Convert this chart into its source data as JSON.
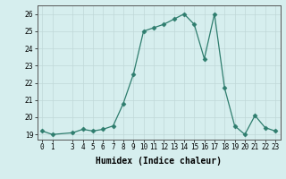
{
  "x": [
    0,
    1,
    3,
    4,
    5,
    6,
    7,
    8,
    9,
    10,
    11,
    12,
    13,
    14,
    15,
    16,
    17,
    18,
    19,
    20,
    21,
    22,
    23
  ],
  "y": [
    19.2,
    19.0,
    19.1,
    19.3,
    19.2,
    19.3,
    19.5,
    20.8,
    22.5,
    25.0,
    25.2,
    25.4,
    25.7,
    26.0,
    25.4,
    23.4,
    26.0,
    21.7,
    19.5,
    19.0,
    20.1,
    19.4,
    19.2
  ],
  "line_color": "#2e7d6e",
  "marker": "D",
  "marker_size": 2.5,
  "bg_color": "#d6eeee",
  "grid_color": "#c0d8d8",
  "xlabel": "Humidex (Indice chaleur)",
  "ylim": [
    18.7,
    26.5
  ],
  "xlim": [
    -0.5,
    23.5
  ],
  "yticks": [
    19,
    20,
    21,
    22,
    23,
    24,
    25,
    26
  ],
  "xticks": [
    0,
    1,
    3,
    4,
    5,
    6,
    7,
    8,
    9,
    10,
    11,
    12,
    13,
    14,
    15,
    16,
    17,
    18,
    19,
    20,
    21,
    22,
    23
  ],
  "xlabel_fontsize": 7,
  "tick_fontsize": 5.5,
  "line_width": 0.9
}
